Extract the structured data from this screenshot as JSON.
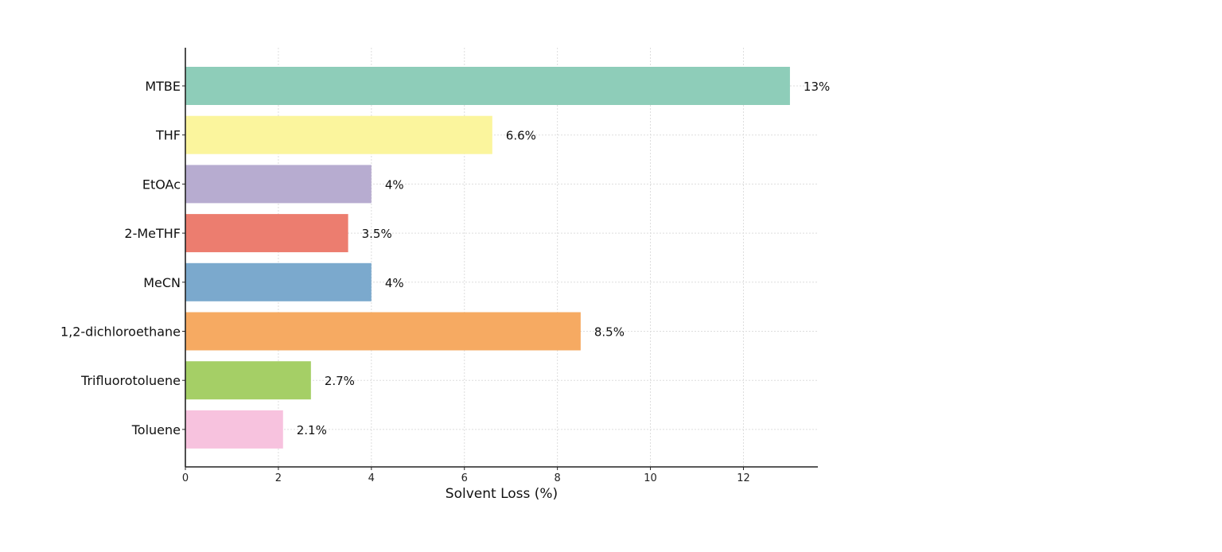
{
  "chart_data": {
    "type": "bar",
    "orientation": "horizontal",
    "title": "",
    "xlabel": "Solvent Loss (%)",
    "ylabel": "",
    "xlim": [
      0,
      13.6
    ],
    "x_ticks": [
      "0",
      "2",
      "4",
      "6",
      "8",
      "10",
      "12"
    ],
    "grid": true,
    "categories": [
      "MTBE",
      "THF",
      "EtOAc",
      "2-MeTHF",
      "MeCN",
      "1,2-dichloroethane",
      "Trifluorotoluene",
      "Toluene"
    ],
    "values": [
      13,
      6.6,
      4,
      3.5,
      4,
      8.5,
      2.7,
      2.1
    ],
    "data_labels": [
      "13%",
      "6.6%",
      "4%",
      "3.5%",
      "4%",
      "8.5%",
      "2.7%",
      "2.1%"
    ],
    "colors": [
      "#8ecdb9",
      "#fbf59d",
      "#b7acd0",
      "#ec7d6f",
      "#7ba9cd",
      "#f6aa62",
      "#a5cf66",
      "#f7c2de"
    ]
  }
}
